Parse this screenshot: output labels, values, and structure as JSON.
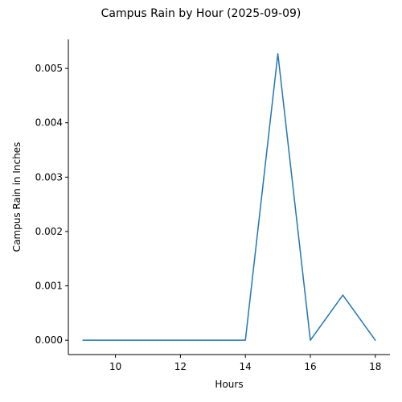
{
  "chart_data": {
    "type": "line",
    "title": "Campus Rain by Hour (2025-09-09)",
    "xlabel": "Hours",
    "ylabel": "Campus Rain in Inches",
    "x": [
      9,
      10,
      11,
      12,
      13,
      14,
      15,
      16,
      17,
      18
    ],
    "series": [
      {
        "values": [
          0,
          0,
          0,
          0,
          0,
          0,
          0.00527,
          0,
          0.00083,
          0
        ],
        "color": "#1f77b4"
      }
    ],
    "xlim": [
      8.55,
      18.45
    ],
    "ylim": [
      -0.000264,
      0.005534
    ],
    "xticks": [
      10,
      12,
      14,
      16,
      18
    ],
    "yticks": [
      0.0,
      0.001,
      0.002,
      0.003,
      0.004,
      0.005
    ],
    "xtick_labels": [
      "10",
      "12",
      "14",
      "16",
      "18"
    ],
    "ytick_labels": [
      "0.000",
      "0.001",
      "0.002",
      "0.003",
      "0.004",
      "0.005"
    ],
    "grid": false,
    "legend": false
  }
}
